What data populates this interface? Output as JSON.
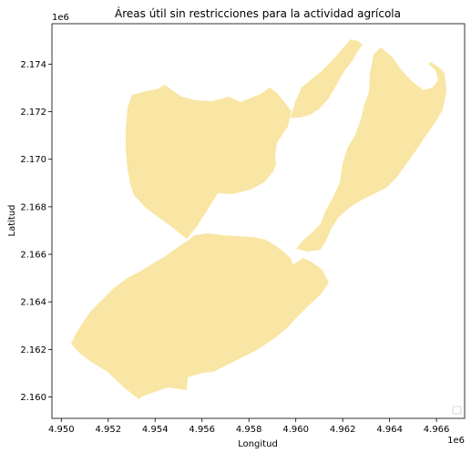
{
  "chart_data": {
    "type": "map",
    "title": "Áreas útil sin restricciones para la actividad agrícola",
    "xlabel": "Longitud",
    "ylabel": "Latitud",
    "x_offset_label": "1e6",
    "y_offset_label": "1e6",
    "xlim": [
      4.9496,
      4.9672
    ],
    "ylim": [
      2.1591,
      2.1757
    ],
    "x_ticks": [
      4.95,
      4.952,
      4.954,
      4.956,
      4.958,
      4.96,
      4.962,
      4.964,
      4.966
    ],
    "x_tick_labels": [
      "4.950",
      "4.952",
      "4.954",
      "4.956",
      "4.958",
      "4.960",
      "4.962",
      "4.964",
      "4.966"
    ],
    "y_ticks": [
      2.16,
      2.162,
      2.164,
      2.166,
      2.168,
      2.17,
      2.172,
      2.174
    ],
    "y_tick_labels": [
      "2.160",
      "2.162",
      "2.164",
      "2.166",
      "2.168",
      "2.170",
      "2.172",
      "2.174"
    ],
    "fill_color": "#f9e6a4",
    "background_color": "#ffffff",
    "grid": false,
    "legend": {
      "placement": "lower-right",
      "entries": []
    }
  }
}
